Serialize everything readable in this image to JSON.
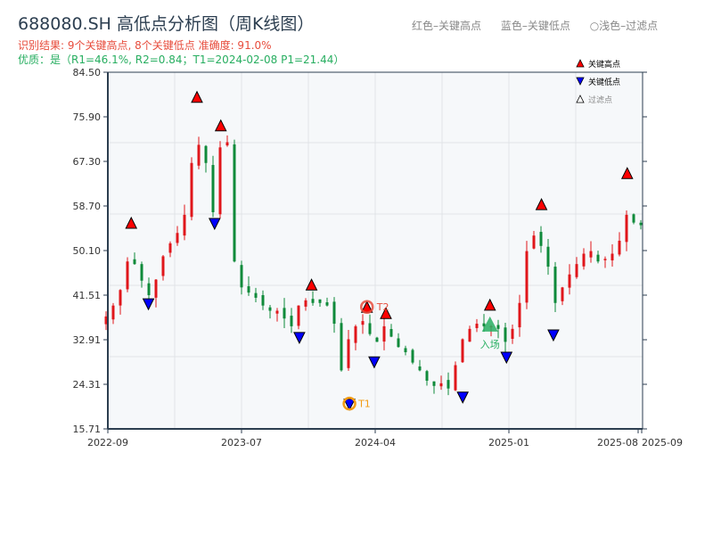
{
  "header": {
    "title": "688080.SH 高低点分析图（周K线图）",
    "result": "识别结果: 9个关键高点, 8个关键低点   准确度: 91.0%",
    "quality": "优质：是（R1=46.1%, R2=0.84；T1=2024-02-08 P1=21.44）",
    "legend_top": [
      "红色–关键高点",
      "蓝色–关键低点",
      "○浅色–过滤点"
    ]
  },
  "chart_data": {
    "type": "candlestick",
    "title": "688080.SH 高低点分析图（周K线图）",
    "ylim": [
      15.71,
      84.5
    ],
    "y_ticks": [
      "84.50",
      "75.90",
      "67.30",
      "58.70",
      "50.10",
      "41.51",
      "32.91",
      "24.31",
      "15.71"
    ],
    "x_ticks": [
      "2022-09",
      "2023-07",
      "2024-04",
      "2025-01",
      "2025-08",
      "2025-09"
    ],
    "x_range": [
      "2022-09",
      "2025-09"
    ],
    "grid": true,
    "colors": {
      "up": "#e0161b",
      "down": "#0f8a3a",
      "high": "#ff0000",
      "low": "#0000ff",
      "t1": "#f39c12",
      "t2": "#e74c3c",
      "entry": "#27ae60"
    },
    "closes": [
      37.4,
      39.5,
      42.5,
      48,
      47.5,
      44.3,
      41.5,
      44.5,
      49,
      51.5,
      53.5,
      57,
      67,
      70.5,
      67,
      57.5,
      70,
      71,
      48,
      43,
      42,
      41,
      39.5,
      38.5,
      38.5,
      37,
      35.5,
      39.5,
      40.5,
      40,
      40,
      39.5,
      36,
      27,
      33,
      35.5,
      36.5,
      34,
      32.5,
      35.5,
      33.5,
      31.5,
      30.5,
      28.5,
      27,
      25,
      24,
      24.5,
      23.5,
      28,
      33,
      35,
      36,
      35.5,
      35.5,
      35,
      32.5,
      35,
      40,
      50,
      53,
      51,
      47,
      40,
      43,
      45.5,
      47.5,
      49.5,
      50,
      48,
      48.5,
      49.5,
      52,
      57,
      55.5,
      55
    ],
    "key_highs": [
      {
        "date": "2022-10-24",
        "price": 54.4
      },
      {
        "date": "2023-03-22",
        "price": 78.7
      },
      {
        "date": "2023-05-15",
        "price": 73.2
      },
      {
        "date": "2023-11-22",
        "price": 42.5
      },
      {
        "date": "2024-03-15",
        "price": 38.2
      },
      {
        "date": "2024-04-23",
        "price": 37.0
      },
      {
        "date": "2024-11-23",
        "price": 38.6
      },
      {
        "date": "2025-03-02",
        "price": 58.0
      },
      {
        "date": "2025-08-07",
        "price": 64.0
      }
    ],
    "key_lows": [
      {
        "date": "2022-12-02",
        "price": 40.8
      },
      {
        "date": "2023-05-01",
        "price": 56.3
      },
      {
        "date": "2023-10-28",
        "price": 34.3
      },
      {
        "date": "2024-02-08",
        "price": 21.44
      },
      {
        "date": "2024-03-30",
        "price": 29.6
      },
      {
        "date": "2024-09-28",
        "price": 22.8
      },
      {
        "date": "2024-12-27",
        "price": 30.5
      },
      {
        "date": "2025-03-24",
        "price": 34.8
      }
    ],
    "annotations": [
      {
        "label": "T1",
        "date": "2024-02-08",
        "price": 21.44
      },
      {
        "label": "T2",
        "date": "2024-03-15",
        "price": 38.2
      },
      {
        "label": "入场",
        "date": "2024-11-23",
        "price": 35.0
      }
    ],
    "legend": [
      "关键高点",
      "关键低点",
      "过滤点"
    ],
    "legend_placement": "top-right"
  }
}
